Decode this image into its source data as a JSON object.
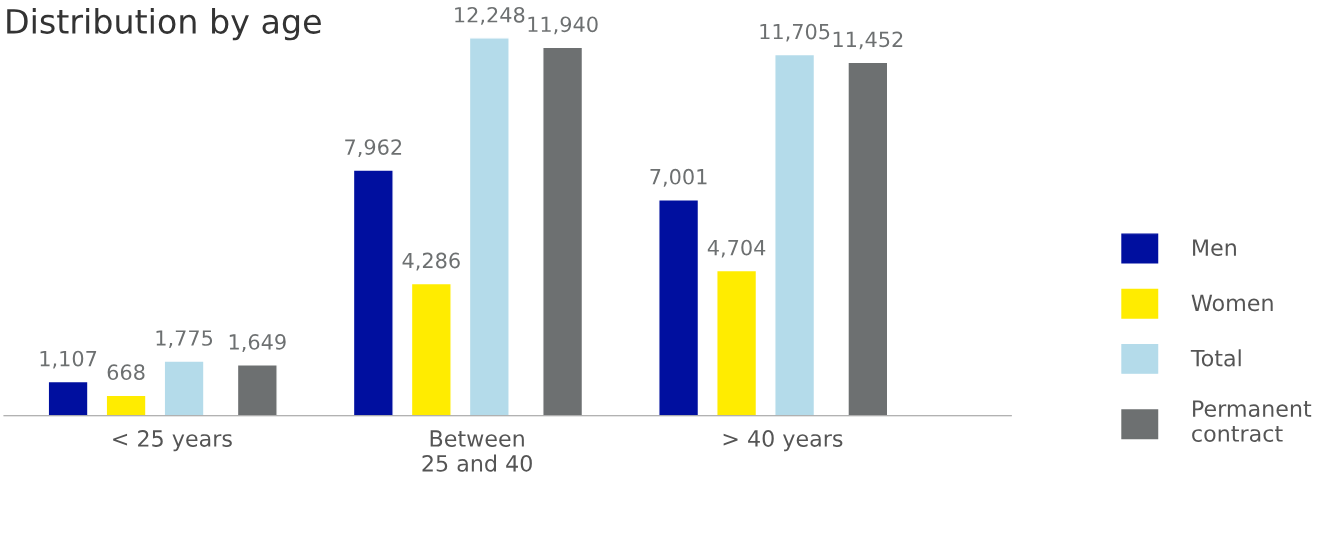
{
  "chart_data": {
    "type": "bar",
    "title": "Distribution by age",
    "categories": [
      "< 25 years",
      "Between\n25 and 40",
      "> 40 years"
    ],
    "series": [
      {
        "name": "Men",
        "color": "#000f9f",
        "values": [
          1107,
          7962,
          7001
        ],
        "value_labels": [
          "1,107",
          "7,962",
          "7,001"
        ]
      },
      {
        "name": "Women",
        "color": "#ffec00",
        "values": [
          668,
          4286,
          4704
        ],
        "value_labels": [
          "668",
          "4,286",
          "4,704"
        ]
      },
      {
        "name": "Total",
        "color": "#b4dbea",
        "values": [
          1775,
          12248,
          11705
        ],
        "value_labels": [
          "1,775",
          "12,248",
          "11,705"
        ]
      },
      {
        "name": "Permanent\ncontract",
        "color": "#6d7071",
        "values": [
          1649,
          11940,
          11452
        ],
        "value_labels": [
          "1,649",
          "11,940",
          "11,452"
        ]
      }
    ],
    "legend": "right",
    "grid": false
  }
}
